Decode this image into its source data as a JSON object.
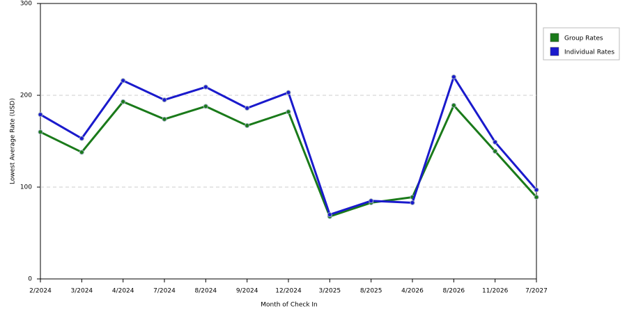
{
  "chart_data": {
    "type": "line",
    "x_label": "Month of Check In",
    "y_label": "Lowest Average Rate (USD)",
    "categories": [
      "2/2024",
      "3/2024",
      "4/2024",
      "7/2024",
      "8/2024",
      "9/2024",
      "12/2024",
      "3/2025",
      "8/2025",
      "4/2026",
      "8/2026",
      "11/2026",
      "7/2027"
    ],
    "series": [
      {
        "name": "Group Rates",
        "color": "#1a7a1a",
        "values": [
          160,
          138,
          193,
          174,
          188,
          167,
          182,
          68,
          83,
          89,
          189,
          139,
          89
        ]
      },
      {
        "name": "Individual Rates",
        "color": "#1a1acc",
        "values": [
          179,
          153,
          216,
          195,
          209,
          186,
          203,
          70,
          85,
          83,
          220,
          149,
          97
        ]
      }
    ],
    "ylim": [
      0,
      300
    ],
    "yticks": [
      0,
      100,
      200,
      300
    ],
    "grid": true,
    "legend": "right"
  }
}
